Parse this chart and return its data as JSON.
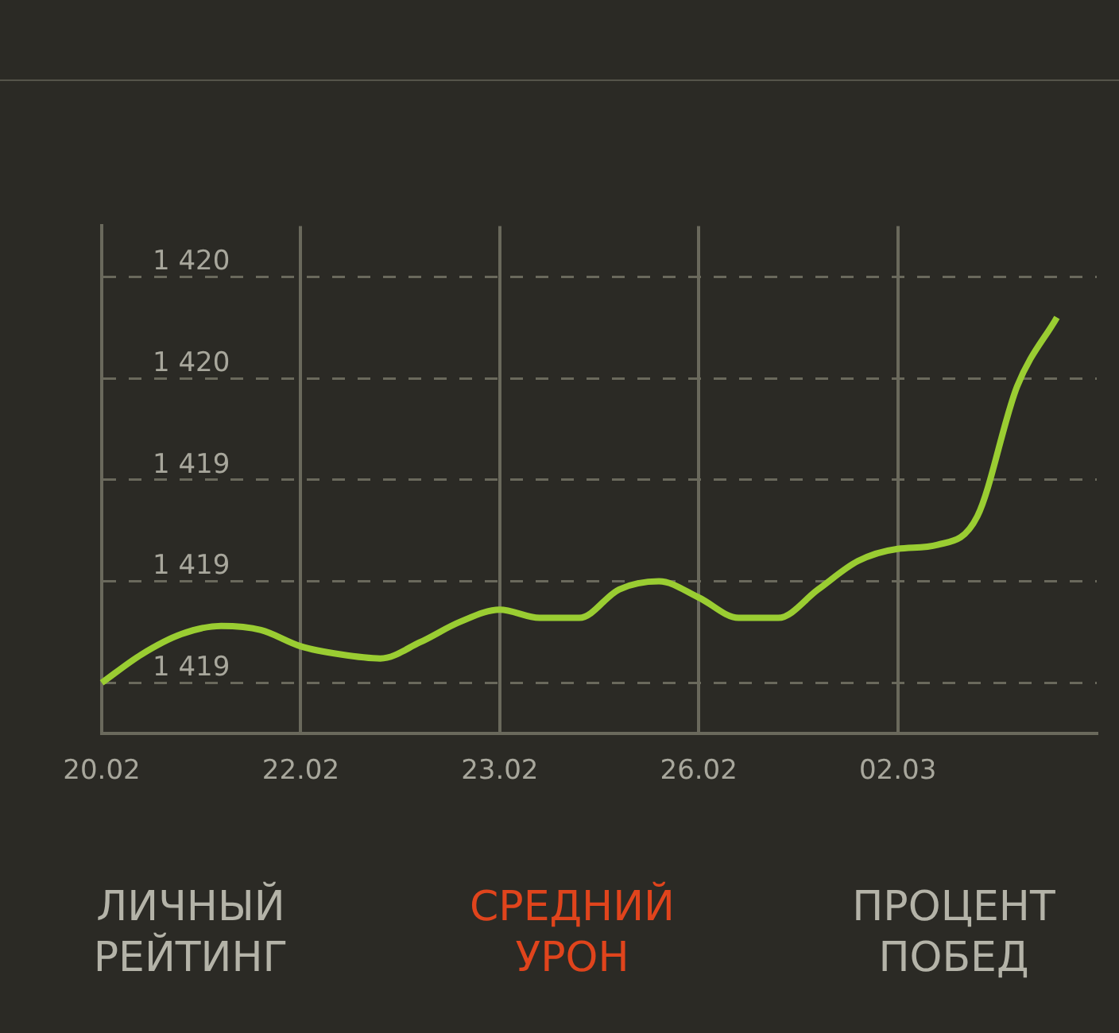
{
  "chart_data": {
    "type": "line",
    "categories": [
      "20.02",
      null,
      null,
      null,
      null,
      "22.02",
      null,
      null,
      null,
      null,
      "23.02",
      null,
      null,
      null,
      null,
      "26.02",
      null,
      null,
      null,
      null,
      "02.03",
      null,
      null,
      null,
      null,
      null
    ],
    "series": [
      {
        "color": "#9acd32",
        "values": [
          1418.75,
          1418.82,
          1418.87,
          1418.89,
          1418.88,
          1418.84,
          1418.82,
          1418.81,
          1418.85,
          1418.9,
          1418.93,
          1418.91,
          1418.91,
          1418.98,
          1419.0,
          1418.96,
          1418.91,
          1418.91,
          1418.98,
          1419.05,
          1419.08,
          1419.09,
          1419.16,
          1419.48,
          1419.65,
          null
        ]
      }
    ],
    "ylim": [
      1418.625,
      1419.875
    ],
    "yticks": [
      {
        "value": 1418.75,
        "label": "1 419"
      },
      {
        "value": 1419,
        "label": "1 419"
      },
      {
        "value": 1419.25,
        "label": "1 419"
      },
      {
        "value": 1419.5,
        "label": "1 420"
      },
      {
        "value": 1419.75,
        "label": "1 420"
      }
    ],
    "grid": true,
    "annotations": [
      "ЛИЧНЫЙ РЕЙТИНГ",
      "СРЕДНИЙ УРОН",
      "ПРОЦЕНТ ПОБЕД"
    ]
  }
}
